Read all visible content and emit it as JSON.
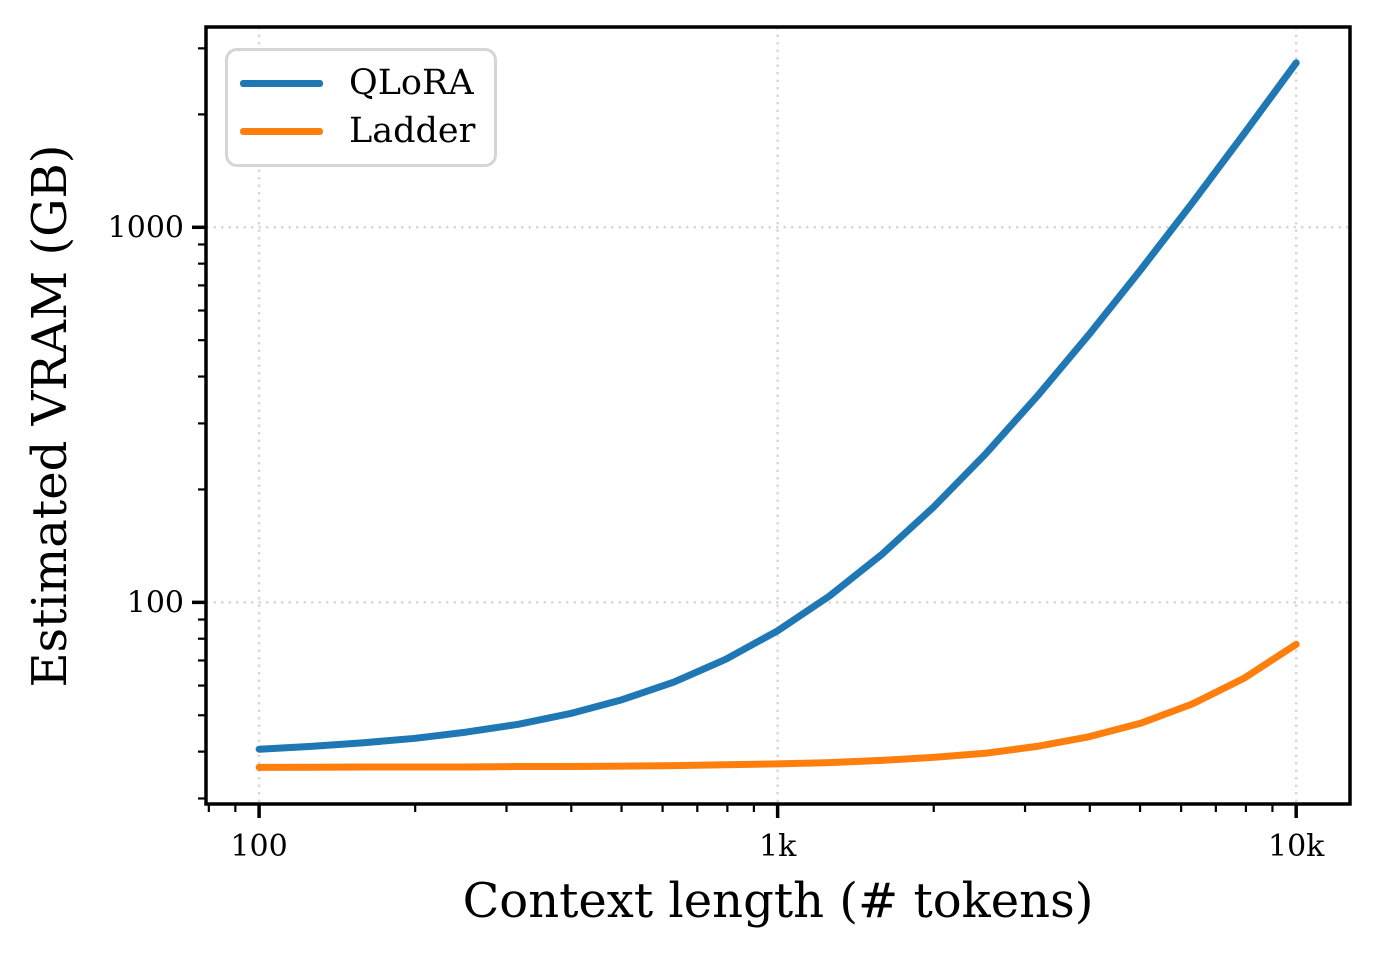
{
  "figure": {
    "background": "#ffffff",
    "xlabel": "Context length (# tokens)",
    "ylabel": "Estimated VRAM (GB)"
  },
  "legend": {
    "position": "upper-left",
    "entries": [
      {
        "label": "QLoRA",
        "color": "#1f77b4"
      },
      {
        "label": "Ladder",
        "color": "#ff7f0e"
      }
    ]
  },
  "style": {
    "grid_color": "#d8d8d8",
    "spine_color": "#000000",
    "tick_color": "#000000",
    "text_color": "#000000",
    "series_line_width": 7
  },
  "chart_data": {
    "type": "line",
    "title": "",
    "xlabel": "Context length (# tokens)",
    "ylabel": "Estimated VRAM (GB)",
    "xscale": "log",
    "yscale": "log",
    "xlim": [
      79,
      12700
    ],
    "ylim": [
      29,
      3420
    ],
    "grid": "major-only, dotted",
    "legend_position": "upper left",
    "x_ticks": [
      {
        "v": 100,
        "label": "100"
      },
      {
        "v": 1000,
        "label": "1k"
      },
      {
        "v": 10000,
        "label": "10k"
      }
    ],
    "y_ticks": [
      {
        "v": 100,
        "label": "100"
      },
      {
        "v": 1000,
        "label": "1000"
      }
    ],
    "series": [
      {
        "name": "QLoRA",
        "color": "#1f77b4",
        "points": [
          [
            100,
            40.6
          ],
          [
            126,
            41.3
          ],
          [
            158,
            42.2
          ],
          [
            200,
            43.4
          ],
          [
            251,
            45.1
          ],
          [
            316,
            47.3
          ],
          [
            398,
            50.5
          ],
          [
            501,
            55.0
          ],
          [
            631,
            61.3
          ],
          [
            794,
            70.5
          ],
          [
            1000,
            84.0
          ],
          [
            1259,
            104.0
          ],
          [
            1585,
            133.9
          ],
          [
            1995,
            179.1
          ],
          [
            2512,
            248.1
          ],
          [
            3162,
            353.7
          ],
          [
            3981,
            516.9
          ],
          [
            5012,
            770.0
          ],
          [
            6310,
            1164.0
          ],
          [
            7943,
            1780.0
          ],
          [
            10000,
            2745.0
          ]
        ]
      },
      {
        "name": "Ladder",
        "color": "#ff7f0e",
        "points": [
          [
            100,
            36.3
          ],
          [
            126,
            36.35
          ],
          [
            158,
            36.4
          ],
          [
            200,
            36.4
          ],
          [
            251,
            36.4
          ],
          [
            316,
            36.5
          ],
          [
            398,
            36.5
          ],
          [
            501,
            36.6
          ],
          [
            631,
            36.7
          ],
          [
            794,
            36.9
          ],
          [
            1000,
            37.1
          ],
          [
            1259,
            37.4
          ],
          [
            1585,
            37.9
          ],
          [
            1995,
            38.6
          ],
          [
            2512,
            39.6
          ],
          [
            3162,
            41.3
          ],
          [
            3981,
            43.8
          ],
          [
            5012,
            47.6
          ],
          [
            6310,
            53.6
          ],
          [
            7943,
            62.8
          ],
          [
            10000,
            77.3
          ]
        ]
      }
    ]
  }
}
